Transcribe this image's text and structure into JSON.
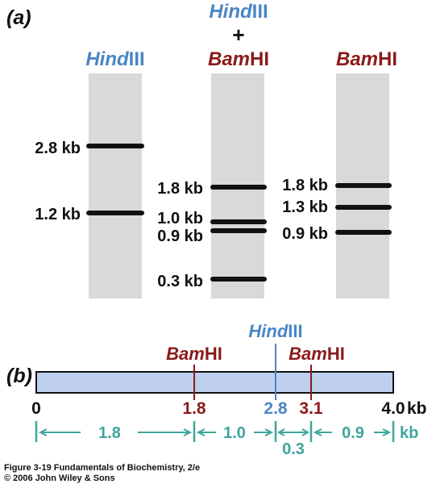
{
  "colors": {
    "enzyme_hind": "#4a86c5",
    "enzyme_bam": "#8b1a1a",
    "teal": "#3fa59c",
    "lane_gray": "#d9d9d9",
    "map_fill": "#bfd0ee",
    "band": "#111111"
  },
  "panel_a": {
    "label": "(a)",
    "lane1_header": {
      "it": "Hind",
      "rest": "III"
    },
    "lane2_header": {
      "line1_it": "Hind",
      "line1_rest": "III",
      "plus": "+",
      "line3_it": "Bam",
      "line3_rest": "HI"
    },
    "lane3_header": {
      "it": "Bam",
      "rest": "HI"
    },
    "lanes": [
      {
        "id": "hind",
        "bands": [
          {
            "kb": 2.8,
            "label": "2.8 kb"
          },
          {
            "kb": 1.2,
            "label": "1.2 kb"
          }
        ]
      },
      {
        "id": "double",
        "bands": [
          {
            "kb": 1.8,
            "label": "1.8 kb"
          },
          {
            "kb": 1.0,
            "label": "1.0 kb"
          },
          {
            "kb": 0.9,
            "label": "0.9 kb"
          },
          {
            "kb": 0.3,
            "label": "0.3 kb"
          }
        ]
      },
      {
        "id": "bam",
        "bands": [
          {
            "kb": 1.8,
            "label": "1.8 kb"
          },
          {
            "kb": 1.3,
            "label": "1.3 kb"
          },
          {
            "kb": 0.9,
            "label": "0.9 kb"
          }
        ]
      }
    ]
  },
  "panel_b": {
    "label": "(b)",
    "site_bam1": {
      "it": "Bam",
      "rest": "HI"
    },
    "site_hind": {
      "it": "Hind",
      "rest": "III"
    },
    "site_bam2": {
      "it": "Bam",
      "rest": "HI"
    },
    "positions": [
      {
        "value": "0",
        "kb": 0,
        "color": "black"
      },
      {
        "value": "1.8",
        "kb": 1.8,
        "color": "bam"
      },
      {
        "value": "2.8",
        "kb": 2.8,
        "color": "hind"
      },
      {
        "value": "3.1",
        "kb": 3.1,
        "color": "bam"
      },
      {
        "value": "4.0",
        "kb": 4.0,
        "color": "black"
      }
    ],
    "end_unit": "kb",
    "segments": [
      {
        "label": "1.8",
        "from": 0,
        "to": 1.8
      },
      {
        "label": "1.0",
        "from": 1.8,
        "to": 2.8
      },
      {
        "label": "0.3",
        "from": 2.8,
        "to": 3.1
      },
      {
        "label": "0.9",
        "from": 3.1,
        "to": 4.0
      }
    ],
    "segment_unit": "kb"
  },
  "caption": {
    "line1": "Figure 3-19  Fundamentals of Biochemistry, 2/e",
    "line2": "© 2006 John Wiley & Sons"
  }
}
